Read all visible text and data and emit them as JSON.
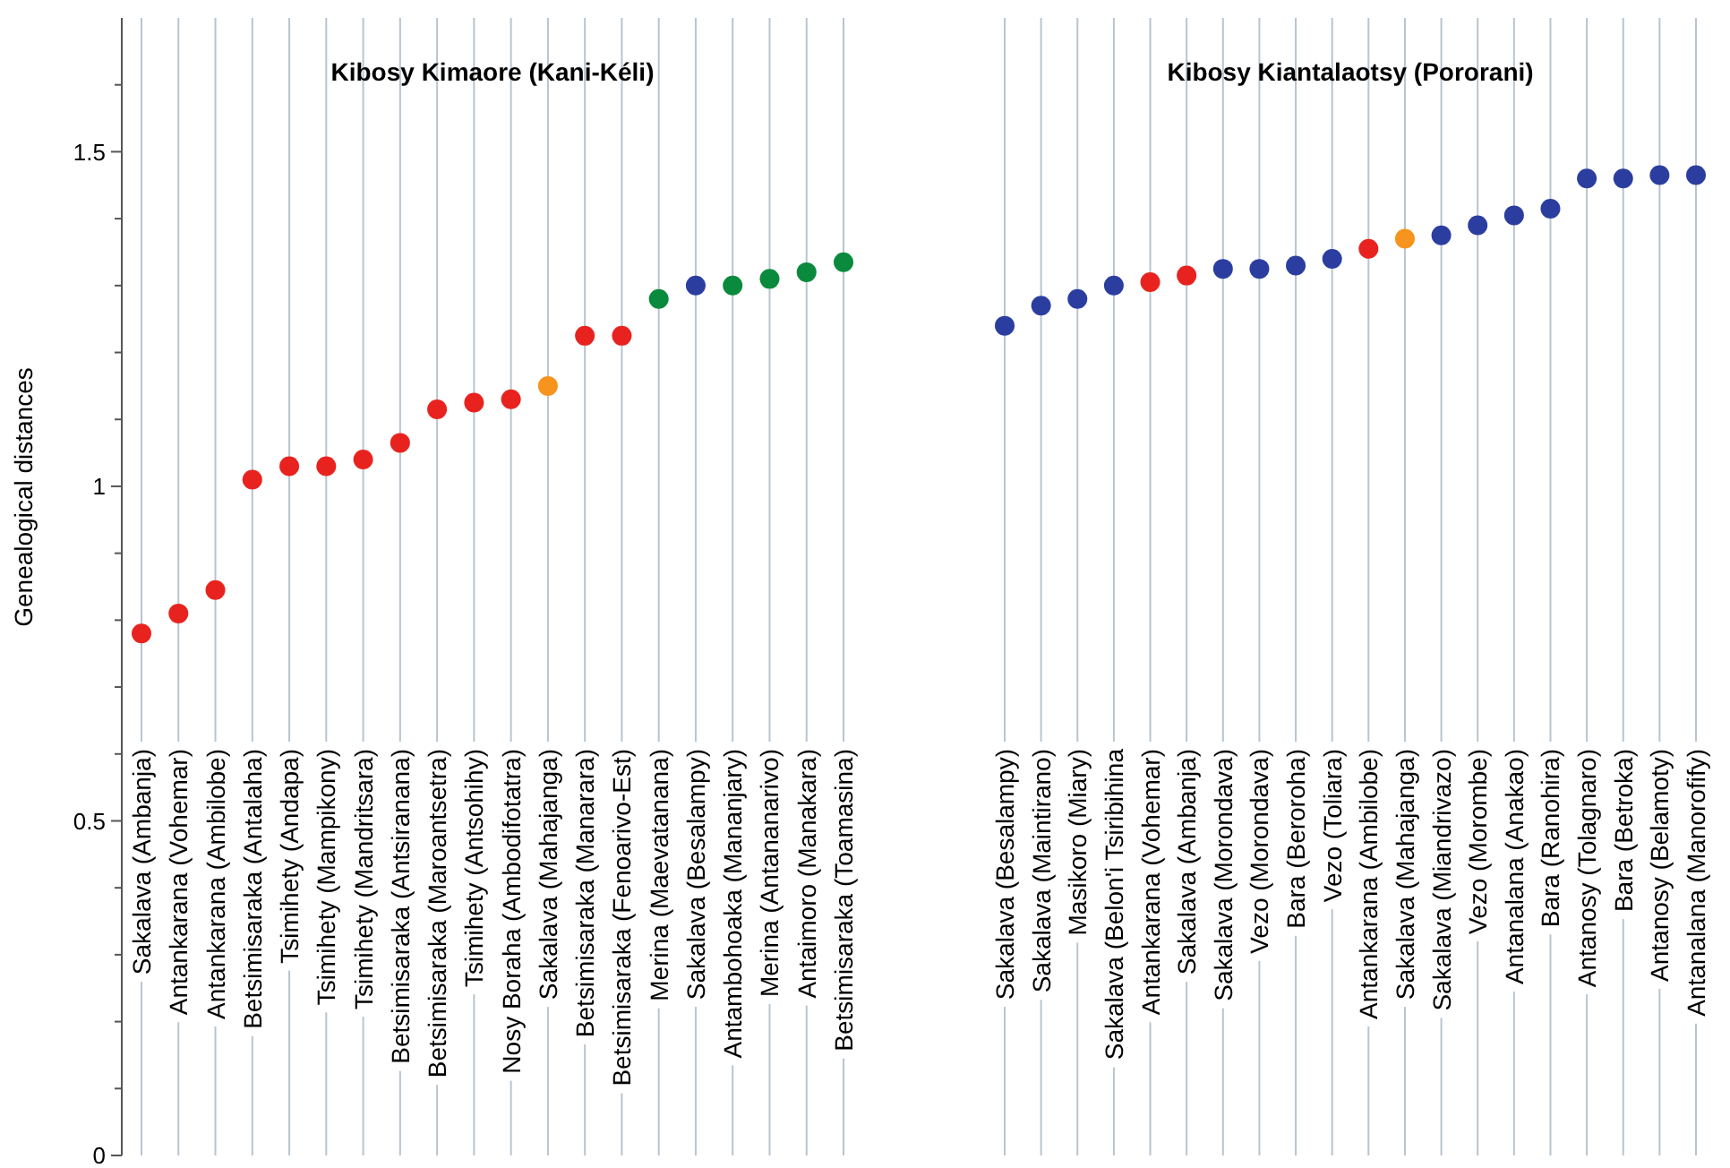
{
  "chart_data": [
    {
      "type": "scatter",
      "title": "Kibosy Kimaore (Kani-Kéli)",
      "ylabel": "Genealogical distances",
      "categories": [
        "Sakalava (Ambanja)",
        "Antankarana (Vohemar)",
        "Antankarana (Ambilobe)",
        "Betsimisaraka (Antalaha)",
        "Tsimihety (Andapa)",
        "Tsimihety (Mampikony)",
        "Tsimihety (Mandritsara)",
        "Betsimisaraka (Antsiranana)",
        "Betsimisaraka (Maroantsetra)",
        "Tsimihety (Antsohihy)",
        "Nosy Boraha (Ambodifotatra)",
        "Sakalava (Mahajanga)",
        "Betsimisaraka (Manarara)",
        "Betsimisaraka (Fenoarivo-Est)",
        "Merina (Maevatanana)",
        "Sakalava (Besalampy)",
        "Antambohoaka (Mananjary)",
        "Merina (Antananarivo)",
        "Antaimoro (Manakara)",
        "Betsimisaraka (Toamasina)"
      ],
      "values": [
        0.78,
        0.81,
        0.845,
        1.01,
        1.03,
        1.03,
        1.04,
        1.065,
        1.115,
        1.125,
        1.13,
        1.15,
        1.225,
        1.225,
        1.28,
        1.3,
        1.3,
        1.31,
        1.32,
        1.335
      ],
      "colors": [
        "#e8231f",
        "#e8231f",
        "#e8231f",
        "#e8231f",
        "#e8231f",
        "#e8231f",
        "#e8231f",
        "#e8231f",
        "#e8231f",
        "#e8231f",
        "#e8231f",
        "#f7941d",
        "#e8231f",
        "#e8231f",
        "#0a8a3c",
        "#2b3ea0",
        "#0a8a3c",
        "#0a8a3c",
        "#0a8a3c",
        "#0a8a3c"
      ],
      "ylim": [
        0,
        1.7
      ],
      "yticks": [
        0,
        {
          "value": 0.1,
          "label": null
        },
        {
          "value": 0.2,
          "label": null
        },
        {
          "value": 0.3,
          "label": null
        },
        {
          "value": 0.4,
          "label": null
        },
        0.5,
        {
          "value": 0.6,
          "label": null
        },
        {
          "value": 0.7,
          "label": null
        },
        {
          "value": 0.8,
          "label": null
        },
        {
          "value": 0.9,
          "label": null
        },
        1,
        {
          "value": 1.1,
          "label": null
        },
        {
          "value": 1.2,
          "label": null
        },
        {
          "value": 1.3,
          "label": null
        },
        {
          "value": 1.4,
          "label": null
        },
        1.5,
        {
          "value": 1.6,
          "label": null
        }
      ],
      "grid": "x",
      "marker": "circle"
    },
    {
      "type": "scatter",
      "title": "Kibosy Kiantalaotsy (Pororani)",
      "categories": [
        "Sakalava (Besalampy)",
        "Sakalava (Maintirano)",
        "Masikoro (Miary)",
        "Sakalava (Belon'i Tsiribihina",
        "Antankarana (Vohemar)",
        "Sakalava (Ambanja)",
        "Sakalava (Morondava)",
        "Vezo (Morondava)",
        "Bara (Beroroha)",
        "Vezo (Toliara)",
        "Antankarana (Ambilobe)",
        "Sakalava (Mahajanga)",
        "Sakalava (Miandrivazo)",
        "Vezo (Morombe)",
        "Antanalana (Anakao)",
        "Bara (Ranohira)",
        "Antanosy (Tolagnaro)",
        "Bara (Betroka)",
        "Antanosy (Belamoty)",
        "Antanalana (Manorofify)"
      ],
      "values": [
        1.24,
        1.27,
        1.28,
        1.3,
        1.305,
        1.315,
        1.325,
        1.325,
        1.33,
        1.34,
        1.355,
        1.37,
        1.375,
        1.39,
        1.405,
        1.415,
        1.46,
        1.46,
        1.465,
        1.465
      ],
      "colors": [
        "#2b3ea0",
        "#2b3ea0",
        "#2b3ea0",
        "#2b3ea0",
        "#e8231f",
        "#e8231f",
        "#2b3ea0",
        "#2b3ea0",
        "#2b3ea0",
        "#2b3ea0",
        "#e8231f",
        "#f7941d",
        "#2b3ea0",
        "#2b3ea0",
        "#2b3ea0",
        "#2b3ea0",
        "#2b3ea0",
        "#2b3ea0",
        "#2b3ea0",
        "#2b3ea0"
      ],
      "ylim": [
        0,
        1.7
      ],
      "yticks": [
        0,
        0.5,
        1,
        1.5
      ],
      "tick_labels": "x",
      "grid": "x",
      "marker": "circle"
    }
  ]
}
